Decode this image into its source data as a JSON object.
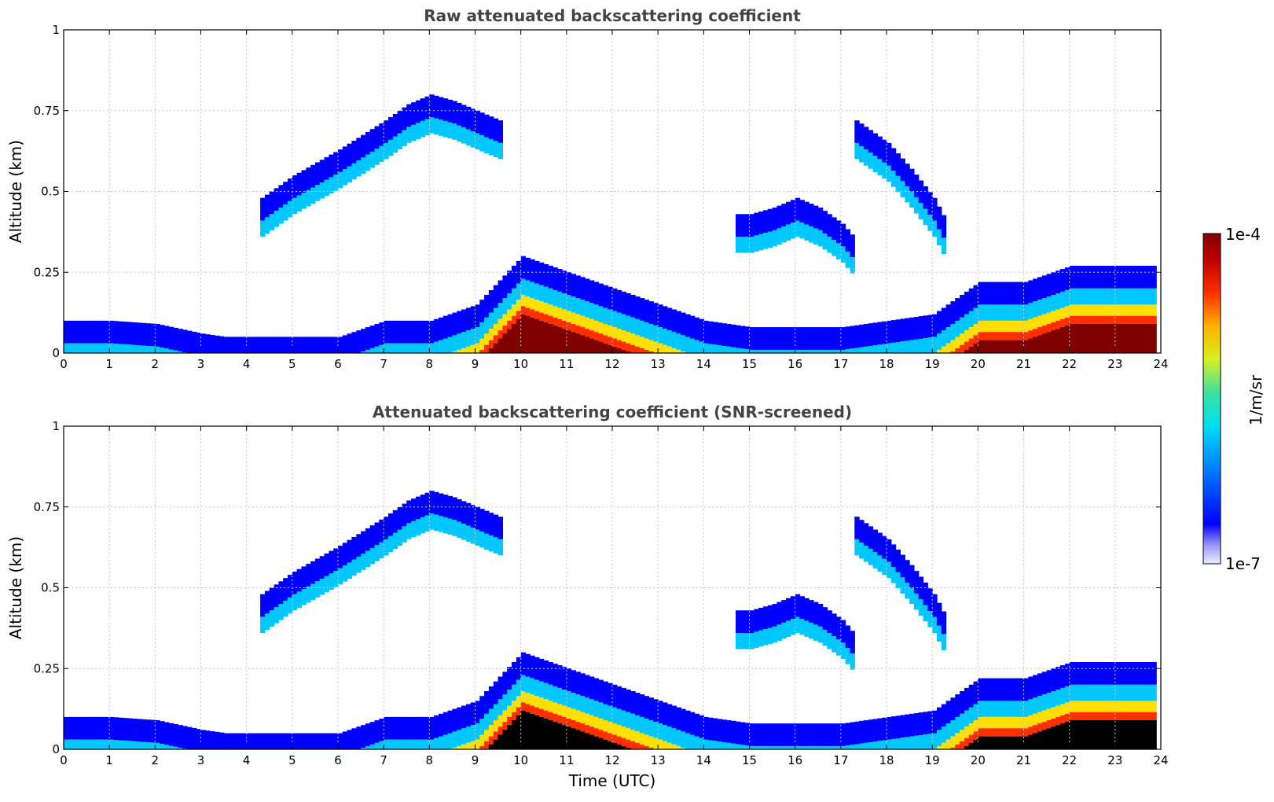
{
  "chart_data": [
    {
      "type": "heatmap",
      "title": "Raw attenuated backscattering coefficient",
      "xlabel": "",
      "ylabel": "Altitude (km)",
      "xlim": [
        0,
        24
      ],
      "ylim": [
        0,
        1
      ],
      "x_ticks": [
        "0",
        "1",
        "2",
        "3",
        "4",
        "5",
        "6",
        "7",
        "8",
        "9",
        "10",
        "11",
        "12",
        "13",
        "14",
        "15",
        "16",
        "17",
        "18",
        "19",
        "20",
        "21",
        "22",
        "23",
        "24"
      ],
      "y_ticks": [
        "0",
        "0.25",
        "0.5",
        "0.75",
        "1"
      ],
      "grid": true,
      "colormap": "jet",
      "colorbar": {
        "min_label": "1e-7",
        "max_label": "1e-4",
        "label": "1/m/sr"
      },
      "layers": [
        {
          "name": "surface_layer",
          "x": [
            0,
            1,
            2,
            3,
            3.5,
            4,
            5,
            6,
            7,
            8,
            9,
            10,
            11,
            12,
            13,
            14,
            15,
            16,
            17,
            18,
            19,
            20,
            21,
            22,
            23,
            23.9
          ],
          "top": [
            0.1,
            0.1,
            0.09,
            0.06,
            0.05,
            0.05,
            0.05,
            0.05,
            0.1,
            0.1,
            0.15,
            0.3,
            0.25,
            0.2,
            0.15,
            0.1,
            0.08,
            0.08,
            0.08,
            0.1,
            0.12,
            0.22,
            0.22,
            0.27,
            0.27,
            0.27
          ]
        },
        {
          "name": "elevated_layer",
          "x": [
            4.3,
            5,
            6,
            7,
            7.5,
            8,
            8.5,
            9,
            9.5
          ],
          "top": [
            0.48,
            0.55,
            0.63,
            0.72,
            0.77,
            0.8,
            0.78,
            0.75,
            0.72
          ]
        },
        {
          "name": "elevated_layer_2",
          "x": [
            14.7,
            15,
            15.5,
            16,
            16.5,
            17,
            17.3
          ],
          "top": [
            0.43,
            0.43,
            0.45,
            0.48,
            0.45,
            0.4,
            0.35
          ]
        },
        {
          "name": "elevated_layer_3",
          "x": [
            17.3,
            17.5,
            18,
            18.5,
            19,
            19.3
          ],
          "top": [
            0.72,
            0.7,
            0.65,
            0.57,
            0.48,
            0.4
          ]
        }
      ]
    },
    {
      "type": "heatmap",
      "title": "Attenuated backscattering coefficient (SNR-screened)",
      "xlabel": "Time (UTC)",
      "ylabel": "Altitude (km)",
      "xlim": [
        0,
        24
      ],
      "ylim": [
        0,
        1
      ],
      "x_ticks": [
        "0",
        "1",
        "2",
        "3",
        "4",
        "5",
        "6",
        "7",
        "8",
        "9",
        "10",
        "11",
        "12",
        "13",
        "14",
        "15",
        "16",
        "17",
        "18",
        "19",
        "20",
        "21",
        "22",
        "23",
        "24"
      ],
      "y_ticks": [
        "0",
        "0.25",
        "0.5",
        "0.75",
        "1"
      ],
      "grid": true,
      "colormap": "jet",
      "colorbar": {
        "min_label": "1e-7",
        "max_label": "1e-4",
        "label": "1/m/sr"
      },
      "layers": [
        {
          "name": "surface_layer",
          "x": [
            0,
            1,
            2,
            3,
            3.5,
            4,
            5,
            6,
            7,
            8,
            9,
            10,
            11,
            12,
            13,
            14,
            15,
            16,
            17,
            18,
            19,
            20,
            21,
            22,
            23,
            23.9
          ],
          "top": [
            0.1,
            0.1,
            0.09,
            0.06,
            0.05,
            0.05,
            0.05,
            0.05,
            0.1,
            0.1,
            0.15,
            0.3,
            0.25,
            0.2,
            0.15,
            0.1,
            0.08,
            0.08,
            0.08,
            0.1,
            0.12,
            0.22,
            0.22,
            0.27,
            0.27,
            0.27
          ]
        },
        {
          "name": "elevated_layer",
          "x": [
            4.3,
            5,
            6,
            7,
            7.5,
            8,
            8.5,
            9,
            9.5
          ],
          "top": [
            0.48,
            0.55,
            0.63,
            0.72,
            0.77,
            0.8,
            0.78,
            0.75,
            0.72
          ]
        },
        {
          "name": "elevated_layer_2",
          "x": [
            14.7,
            15,
            15.5,
            16,
            16.5,
            17,
            17.3
          ],
          "top": [
            0.43,
            0.43,
            0.45,
            0.48,
            0.45,
            0.4,
            0.35
          ]
        },
        {
          "name": "elevated_layer_3",
          "x": [
            17.3,
            17.5,
            18,
            18.5,
            19,
            19.3
          ],
          "top": [
            0.72,
            0.7,
            0.65,
            0.57,
            0.48,
            0.4
          ]
        }
      ]
    }
  ],
  "colorbar": {
    "min_label": "1e-7",
    "max_label": "1e-4",
    "label": "1/m/sr"
  }
}
